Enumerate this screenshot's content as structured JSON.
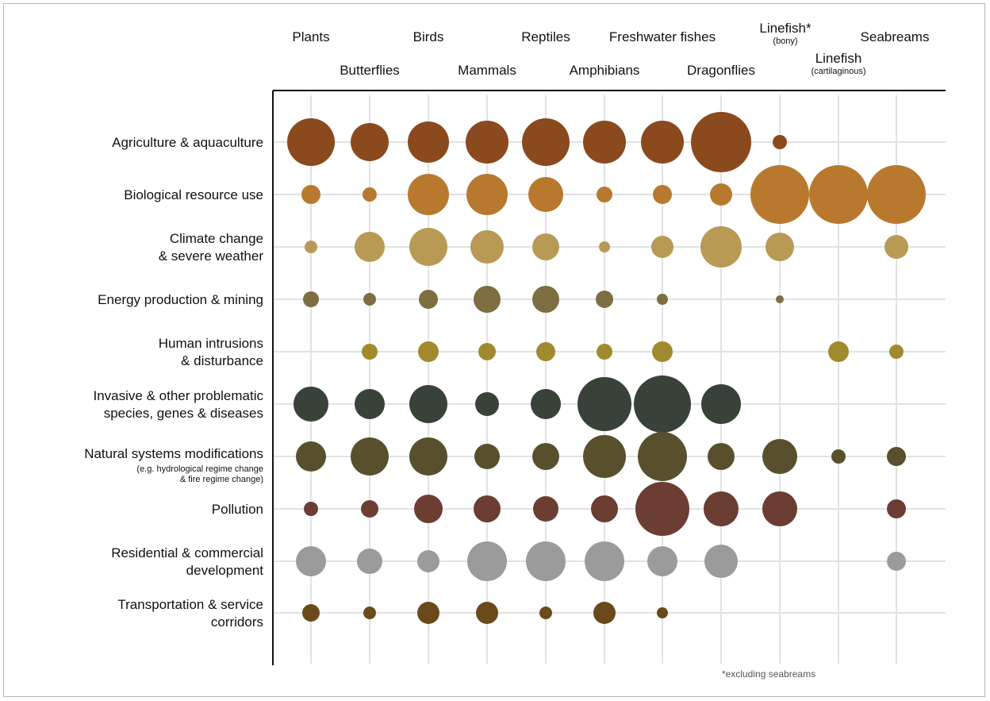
{
  "chart_data": {
    "type": "scatter",
    "subtype": "bubble-matrix",
    "columns": [
      {
        "name": "Plants",
        "sub": ""
      },
      {
        "name": "Butterflies",
        "sub": ""
      },
      {
        "name": "Birds",
        "sub": ""
      },
      {
        "name": "Mammals",
        "sub": ""
      },
      {
        "name": "Reptiles",
        "sub": ""
      },
      {
        "name": "Amphibians",
        "sub": ""
      },
      {
        "name": "Freshwater fishes",
        "sub": ""
      },
      {
        "name": "Dragonflies",
        "sub": ""
      },
      {
        "name": "Linefish*",
        "sub": "(bony)"
      },
      {
        "name": "Linefish",
        "sub": "(cartilaginous)"
      },
      {
        "name": "Seabreams",
        "sub": ""
      }
    ],
    "rows": [
      {
        "lines": [
          "Agriculture & aquaculture"
        ],
        "note": [],
        "color": "#8a4a1e",
        "values": [
          30,
          24,
          26,
          27,
          30,
          27,
          27,
          38,
          9,
          0,
          0
        ]
      },
      {
        "lines": [
          "Biological resource use"
        ],
        "note": [],
        "color": "#b8792f",
        "values": [
          12,
          9,
          26,
          26,
          22,
          10,
          12,
          14,
          37,
          37,
          37
        ]
      },
      {
        "lines": [
          "Climate change",
          "& severe weather"
        ],
        "note": [],
        "color": "#b89a55",
        "values": [
          8,
          19,
          24,
          21,
          17,
          7,
          14,
          26,
          18,
          0,
          15
        ]
      },
      {
        "lines": [
          "Energy production & mining"
        ],
        "note": [],
        "color": "#7d6f42",
        "values": [
          10,
          8,
          12,
          17,
          17,
          11,
          7,
          0,
          5,
          0,
          0
        ]
      },
      {
        "lines": [
          "Human intrusions",
          "& disturbance"
        ],
        "note": [],
        "color": "#a18a2d",
        "values": [
          0,
          10,
          13,
          11,
          12,
          10,
          13,
          0,
          0,
          13,
          9
        ]
      },
      {
        "lines": [
          "Invasive & other problematic",
          "species, genes & diseases"
        ],
        "note": [],
        "color": "#394238",
        "values": [
          22,
          19,
          24,
          15,
          19,
          34,
          36,
          25,
          0,
          0,
          0
        ]
      },
      {
        "lines": [
          "Natural systems modifications"
        ],
        "note": [
          "(e.g. hydrological regime change",
          "& fire regime change)"
        ],
        "color": "#58502d",
        "values": [
          19,
          24,
          24,
          16,
          17,
          27,
          31,
          17,
          22,
          9,
          12
        ]
      },
      {
        "lines": [
          "Pollution"
        ],
        "note": [],
        "color": "#6b3d33",
        "values": [
          9,
          11,
          18,
          17,
          16,
          17,
          34,
          22,
          22,
          0,
          12
        ]
      },
      {
        "lines": [
          "Residential & commercial",
          "development"
        ],
        "note": [],
        "color": "#9b9b9b",
        "values": [
          19,
          16,
          14,
          25,
          25,
          25,
          19,
          21,
          0,
          0,
          12
        ]
      },
      {
        "lines": [
          "Transportation & service",
          "corridors"
        ],
        "note": [],
        "color": "#6a4a1a",
        "values": [
          11,
          8,
          14,
          14,
          8,
          14,
          7,
          0,
          0,
          0,
          0
        ]
      }
    ],
    "footnote": "*excluding seabreams",
    "grid": true
  }
}
